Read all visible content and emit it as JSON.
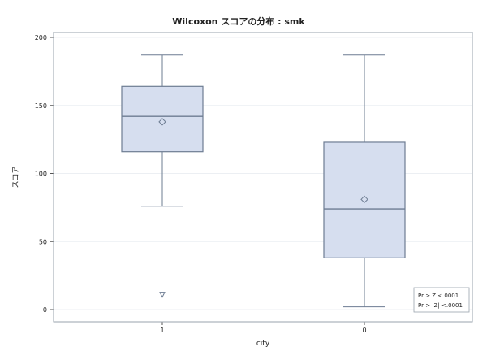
{
  "chart_data": {
    "type": "boxplot",
    "title": "Wilcoxon スコアの分布 : smk",
    "xlabel": "city",
    "ylabel": "スコア",
    "categories": [
      "1",
      "0"
    ],
    "ylim": [
      0,
      200
    ],
    "yticks": [
      0,
      50,
      100,
      150,
      200
    ],
    "boxes": [
      {
        "category": "1",
        "min": 76,
        "q1": 116,
        "median": 142,
        "q3": 164,
        "max": 187,
        "mean": 138,
        "outliers": [
          11
        ]
      },
      {
        "category": "0",
        "min": 2,
        "q1": 38,
        "median": 74,
        "q3": 123,
        "max": 187,
        "mean": 81,
        "outliers": []
      }
    ],
    "grid": "horizontal",
    "legend_position": "bottom-right",
    "inset": [
      "Pr > Z  <.0001",
      "Pr > |Z|  <.0001"
    ],
    "colors": {
      "box_fill": "#d6deef",
      "box_stroke": "#6d7c92",
      "frame": "#9aa3ad",
      "grid": "#eceff3",
      "text": "#222222"
    }
  }
}
